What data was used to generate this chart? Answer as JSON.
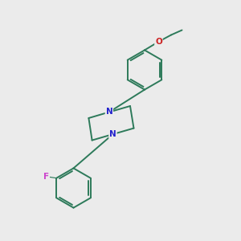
{
  "bg": "#ebebeb",
  "bc": "#2d7a5a",
  "nc": "#2222cc",
  "oc": "#cc2222",
  "fc": "#cc44cc",
  "lw": 1.4,
  "dbo": 0.008,
  "fs": 7.5,
  "figsize": [
    3.0,
    3.0
  ],
  "dpi": 100,
  "xlim": [
    0.0,
    1.0
  ],
  "ylim": [
    0.0,
    1.0
  ]
}
